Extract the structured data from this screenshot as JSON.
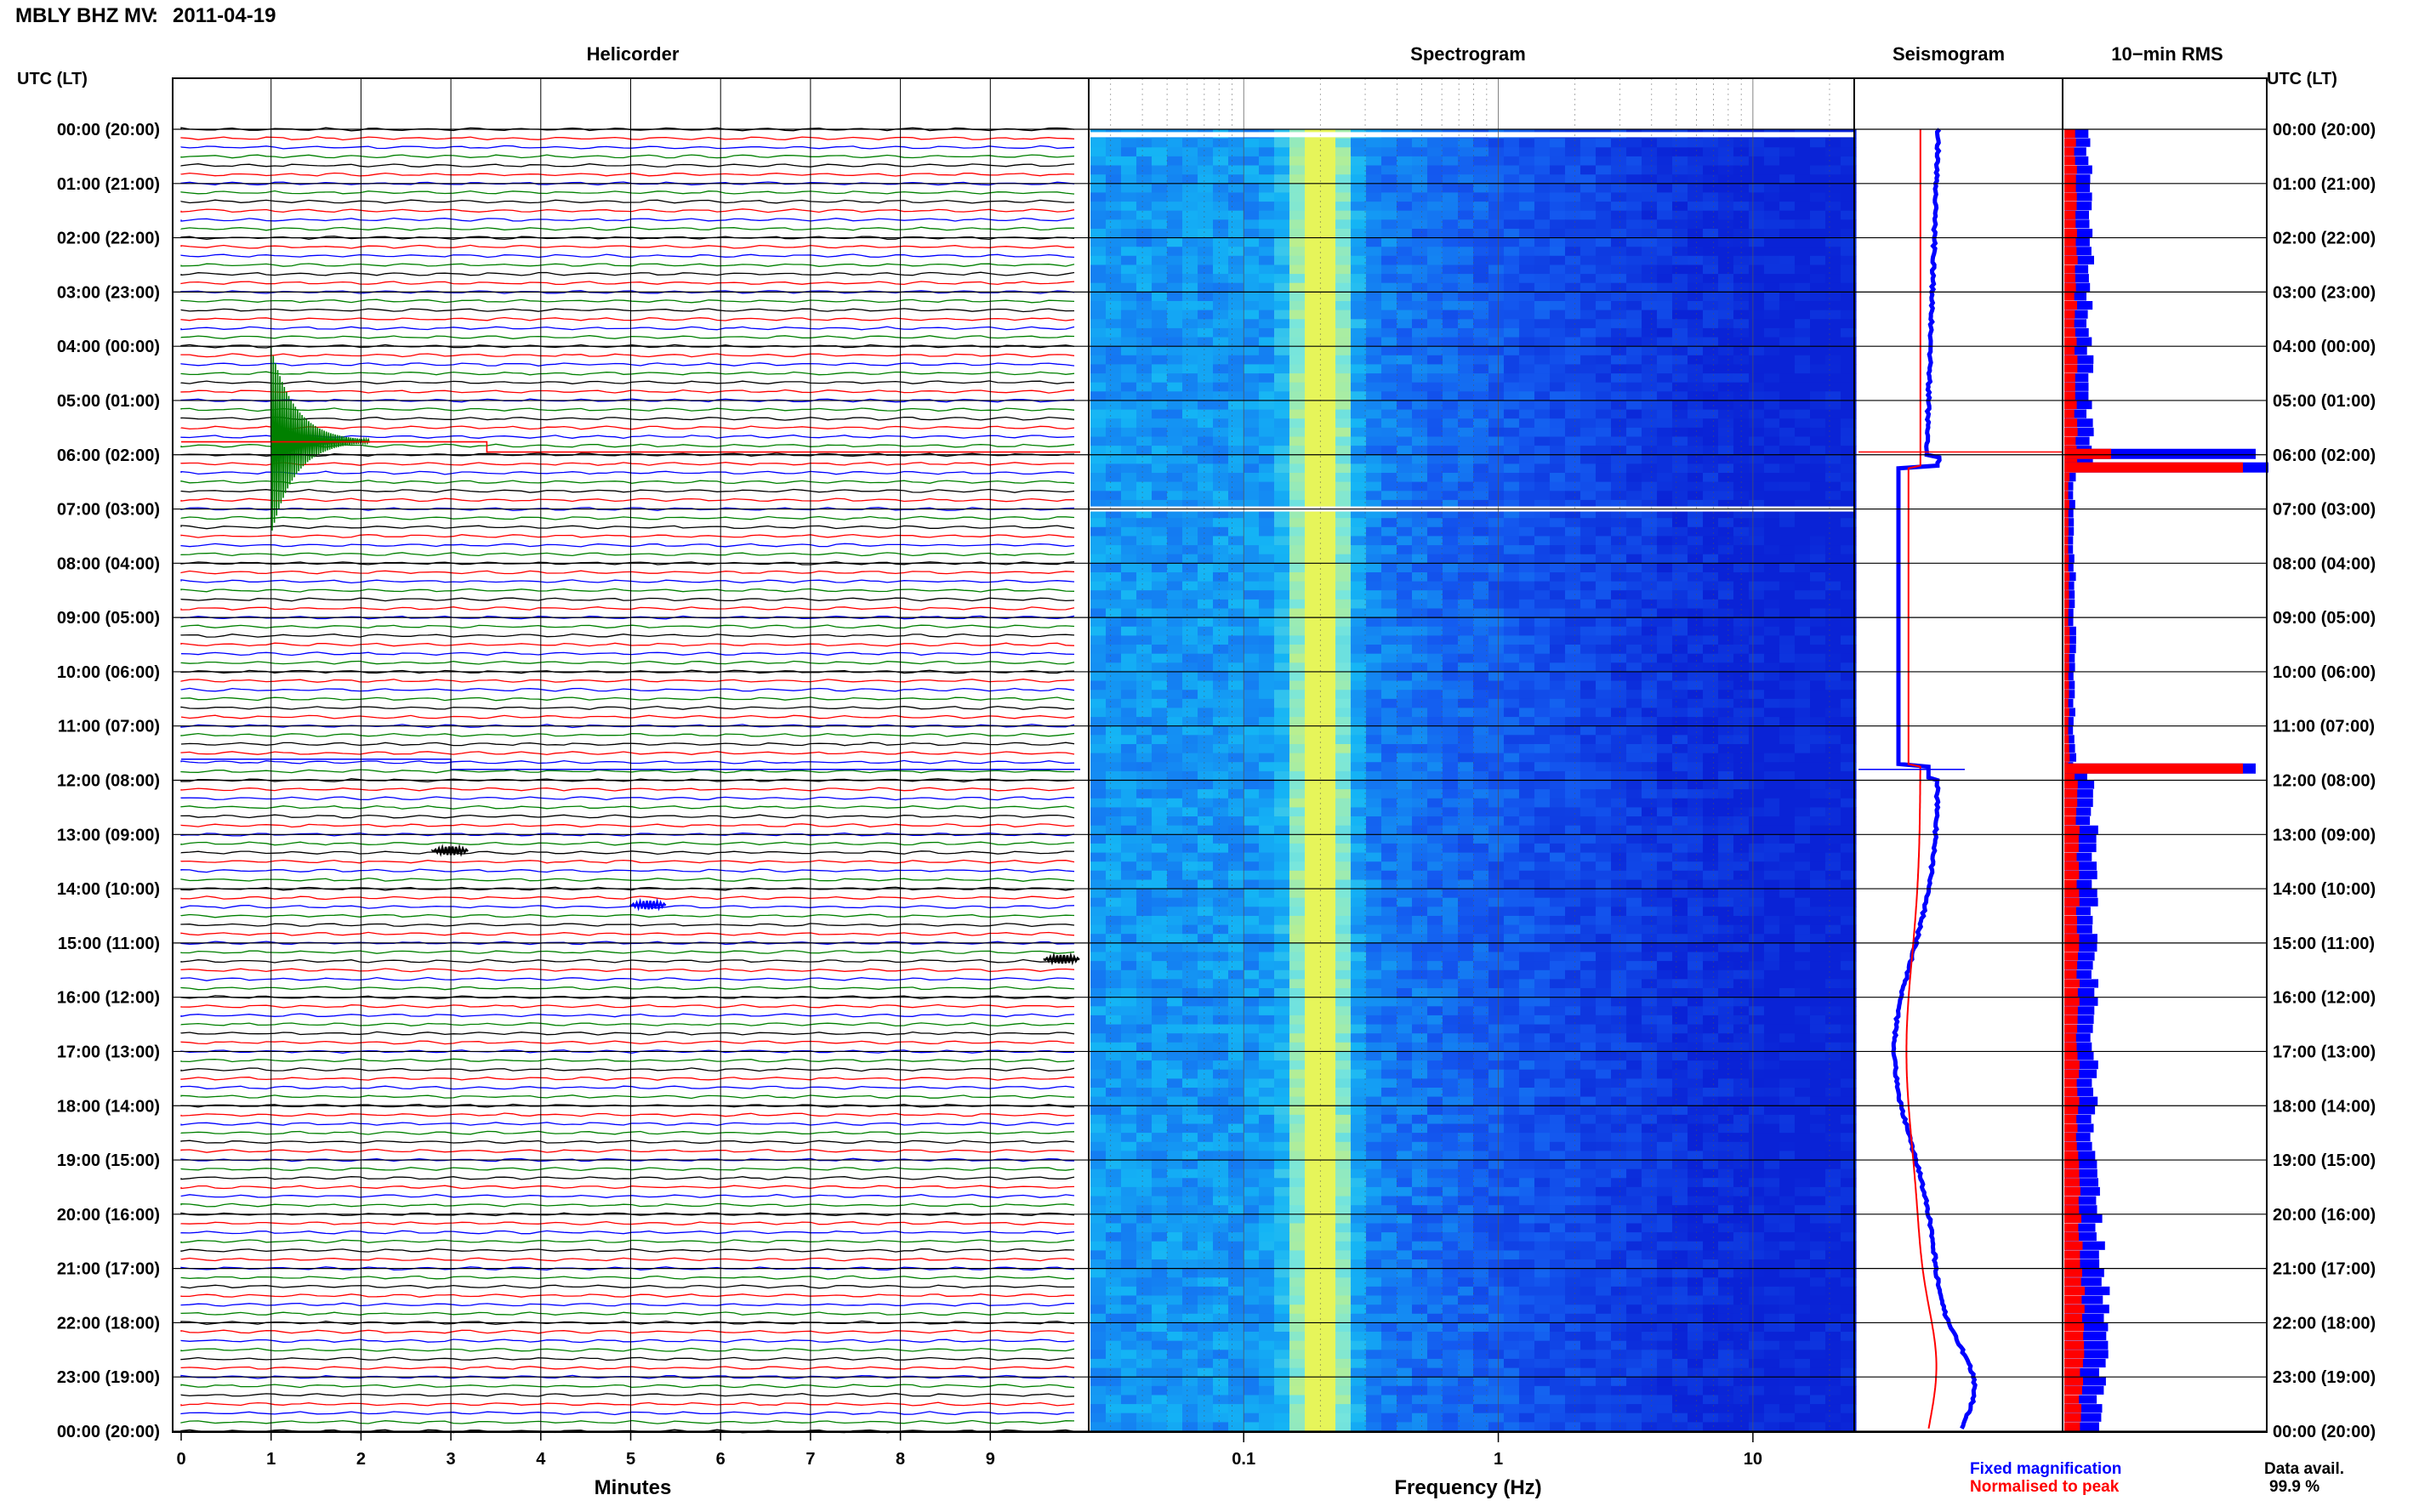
{
  "header": {
    "station": "MBLY BHZ MV",
    "separator": " : ",
    "date": "2011-04-19"
  },
  "panels": {
    "helicorder_title": "Helicorder",
    "spectrogram_title": "Spectrogram",
    "seismogram_title": "Seismogram",
    "rms_title": "10−min RMS",
    "time_axis_label": "UTC (LT)"
  },
  "legend": {
    "fixed_label": "Fixed magnification",
    "fixed_color": "#0000ff",
    "normalised_label": "Normalised to peak",
    "normalised_color": "#ff0000"
  },
  "data_availability": {
    "label": "Data avail.",
    "value": "99.9 %"
  },
  "colors": {
    "trace_cycle": [
      "#000000",
      "#ff0000",
      "#0000ff",
      "#008000"
    ],
    "frame": "#000000",
    "spectro_low": "#0a23d6",
    "spectro_peak": "#e6f55a"
  },
  "chart_data": [
    {
      "type": "line",
      "name": "helicorder",
      "title": "Helicorder",
      "xlabel": "Minutes",
      "x_ticks": [
        0,
        1,
        2,
        3,
        4,
        5,
        6,
        7,
        8,
        9
      ],
      "xlim": [
        0,
        10
      ],
      "row_interval_minutes": 10,
      "rows_per_hour": 6,
      "time_labels": [
        "00:00 (20:00)",
        "01:00 (21:00)",
        "02:00 (22:00)",
        "03:00 (23:00)",
        "04:00 (00:00)",
        "05:00 (01:00)",
        "06:00 (02:00)",
        "07:00 (03:00)",
        "08:00 (04:00)",
        "09:00 (05:00)",
        "10:00 (06:00)",
        "11:00 (07:00)",
        "12:00 (08:00)",
        "13:00 (09:00)",
        "14:00 (10:00)",
        "15:00 (11:00)",
        "16:00 (12:00)",
        "17:00 (13:00)",
        "18:00 (14:00)",
        "19:00 (15:00)",
        "20:00 (16:00)",
        "21:00 (17:00)",
        "22:00 (18:00)",
        "23:00 (19:00)",
        "00:00 (20:00)"
      ],
      "events": [
        {
          "hour": 5.75,
          "minute": 1.0,
          "color": "green",
          "kind": "large earthquake"
        },
        {
          "hour": 5.95,
          "minute": 3.4,
          "color": "red",
          "kind": "offset step"
        },
        {
          "hour": 11.8,
          "minute": 3.0,
          "color": "blue",
          "kind": "offset step"
        },
        {
          "hour": 13.3,
          "minute": 3.0,
          "color": "black",
          "kind": "small event"
        },
        {
          "hour": 14.3,
          "minute": 5.2,
          "color": "blue",
          "kind": "small event"
        },
        {
          "hour": 15.3,
          "minute": 9.8,
          "color": "black",
          "kind": "small event"
        }
      ]
    },
    {
      "type": "heatmap",
      "name": "spectrogram",
      "title": "Spectrogram",
      "xlabel": "Frequency (Hz)",
      "x_scale": "log",
      "xlim": [
        0.025,
        25
      ],
      "x_tick_labels": [
        "0.1",
        "1",
        "10"
      ],
      "x_ticks": [
        0.1,
        1,
        10
      ],
      "peak_frequency_hz": 0.2,
      "gaps_hours": [
        0.1,
        7.0
      ]
    },
    {
      "type": "line",
      "name": "seismogram",
      "title": "Seismogram",
      "series": [
        {
          "name": "Fixed magnification",
          "color": "blue"
        },
        {
          "name": "Normalised to peak",
          "color": "red"
        }
      ]
    },
    {
      "type": "bar",
      "name": "rms",
      "title": "10-min RMS",
      "peaks_hours": [
        6.0,
        6.25,
        11.8
      ]
    }
  ]
}
